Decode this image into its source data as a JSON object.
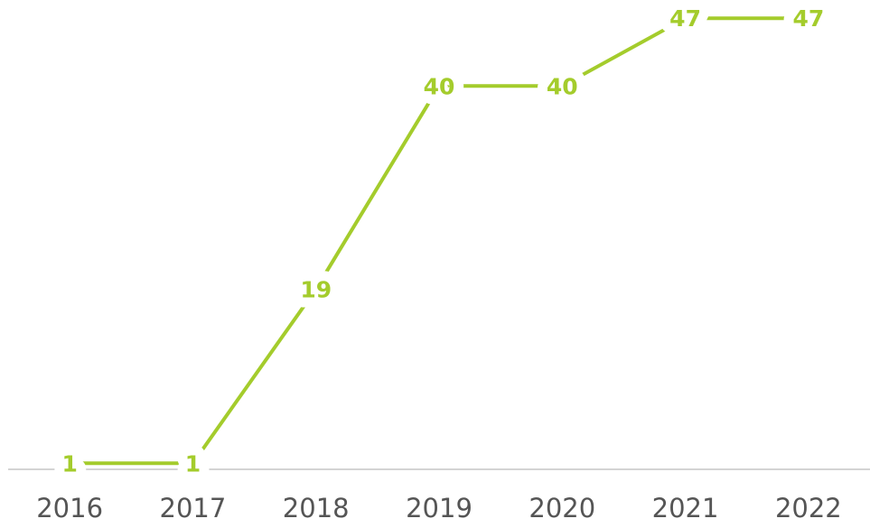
{
  "chart_data": {
    "type": "line",
    "categories": [
      "2016",
      "2017",
      "2018",
      "2019",
      "2020",
      "2021",
      "2022"
    ],
    "values": [
      1,
      1,
      19,
      40,
      40,
      47,
      47
    ],
    "color": "#a4cc2c",
    "ylim": [
      0,
      48
    ]
  }
}
